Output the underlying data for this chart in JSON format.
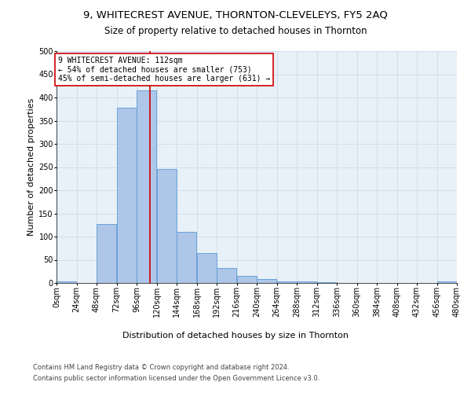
{
  "title": "9, WHITECREST AVENUE, THORNTON-CLEVELEYS, FY5 2AQ",
  "subtitle": "Size of property relative to detached houses in Thornton",
  "xlabel_bottom": "Distribution of detached houses by size in Thornton",
  "ylabel": "Number of detached properties",
  "footer_line1": "Contains HM Land Registry data © Crown copyright and database right 2024.",
  "footer_line2": "Contains public sector information licensed under the Open Government Licence v3.0.",
  "bins_step": 24,
  "bar_values": [
    4,
    0,
    127,
    378,
    416,
    246,
    111,
    65,
    32,
    16,
    8,
    4,
    4,
    1,
    0,
    0,
    0,
    0,
    0,
    3
  ],
  "bar_color": "#aec6e8",
  "bar_edge_color": "#5b9bd5",
  "property_size": 112,
  "vline_color": "#cc0000",
  "annotation_text": "9 WHITECREST AVENUE: 112sqm\n← 54% of detached houses are smaller (753)\n45% of semi-detached houses are larger (631) →",
  "annotation_box_color": "white",
  "annotation_box_edge_color": "#cc0000",
  "xlim": [
    0,
    480
  ],
  "ylim": [
    0,
    500
  ],
  "yticks": [
    0,
    50,
    100,
    150,
    200,
    250,
    300,
    350,
    400,
    450,
    500
  ],
  "xtick_labels": [
    "0sqm",
    "24sqm",
    "48sqm",
    "72sqm",
    "96sqm",
    "120sqm",
    "144sqm",
    "168sqm",
    "192sqm",
    "216sqm",
    "240sqm",
    "264sqm",
    "288sqm",
    "312sqm",
    "336sqm",
    "360sqm",
    "384sqm",
    "408sqm",
    "432sqm",
    "456sqm",
    "480sqm"
  ],
  "grid_color": "#c8d8e8",
  "bg_color": "#e8f0f8",
  "title_fontsize": 9.5,
  "subtitle_fontsize": 8.5,
  "tick_fontsize": 7,
  "label_fontsize": 8,
  "ylabel_fontsize": 8,
  "footer_fontsize": 6,
  "annotation_fontsize": 7
}
